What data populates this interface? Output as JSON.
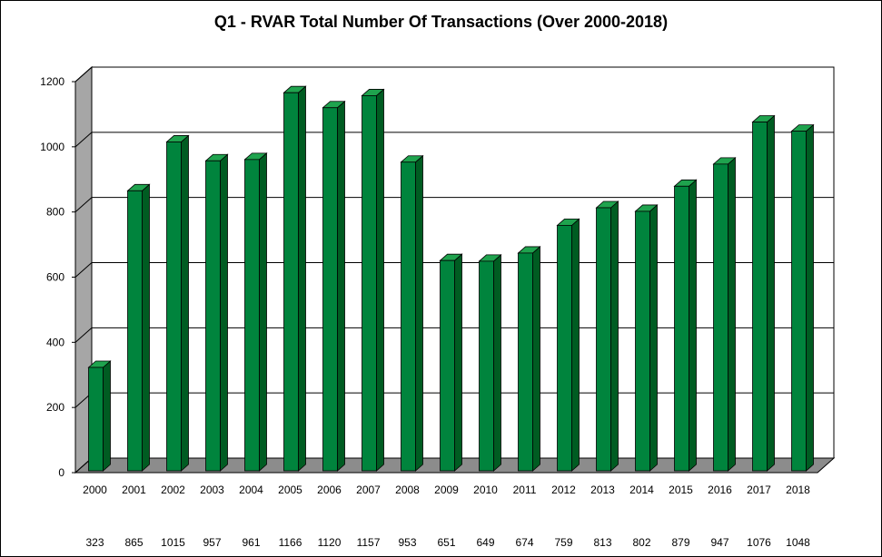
{
  "chart_data": {
    "type": "bar",
    "title": "Q1 - RVAR  Total Number Of Transactions (Over 2000-2018)",
    "xlabel": "",
    "ylabel": "",
    "ylim": [
      0,
      1200
    ],
    "yticks": [
      0,
      200,
      400,
      600,
      800,
      1000,
      1200
    ],
    "grid": true,
    "legend": "none",
    "categories": [
      "2000",
      "2001",
      "2002",
      "2003",
      "2004",
      "2005",
      "2006",
      "2007",
      "2008",
      "2009",
      "2010",
      "2011",
      "2012",
      "2013",
      "2014",
      "2015",
      "2016",
      "2017",
      "2018"
    ],
    "values": [
      323,
      865,
      1015,
      957,
      961,
      1166,
      1120,
      1157,
      953,
      651,
      649,
      674,
      759,
      813,
      802,
      879,
      947,
      1076,
      1048
    ],
    "colors": {
      "bar_front": "#00843D",
      "bar_top": "#1FA34E",
      "bar_side": "#005C22",
      "wall": "#FFFFFF",
      "side_wall": "#A6A6A6",
      "floor": "#8C8C8C"
    }
  }
}
